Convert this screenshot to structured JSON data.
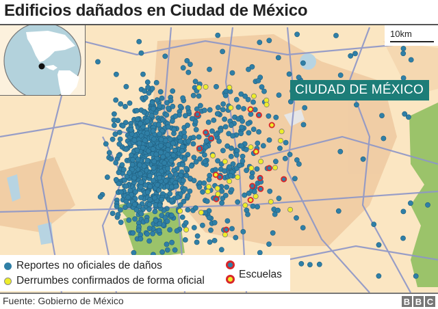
{
  "header": {
    "title": "Edificios dañados en Ciudad de México"
  },
  "map": {
    "city_label": "CIUDAD DE MÉXICO",
    "scale_bar": {
      "label": "10km"
    },
    "inset": {
      "icon": "globe-locator-icon",
      "marker": "mexico-city-location-dot"
    },
    "colors": {
      "background": "#fbe6c2",
      "urban": "#efc9a0",
      "roads": "#8d96c8",
      "green": "#9bc36a",
      "water": "#b7d4e2",
      "unofficial_report": "#2f7fa6",
      "confirmed_collapse": "#eded2a",
      "school_ring": "#d9252a",
      "city_label_bg": "#1d7d78"
    }
  },
  "legend": {
    "items": [
      {
        "label": "Reportes no oficiales de daños",
        "color": "#2f7fa6"
      },
      {
        "label": "Derrumbes confirmados de forma oficial",
        "color": "#eded2a"
      }
    ],
    "schools_label": "Escuelas"
  },
  "footer": {
    "source": "Fuente: Gobierno de México",
    "brand": [
      "B",
      "B",
      "C"
    ]
  }
}
